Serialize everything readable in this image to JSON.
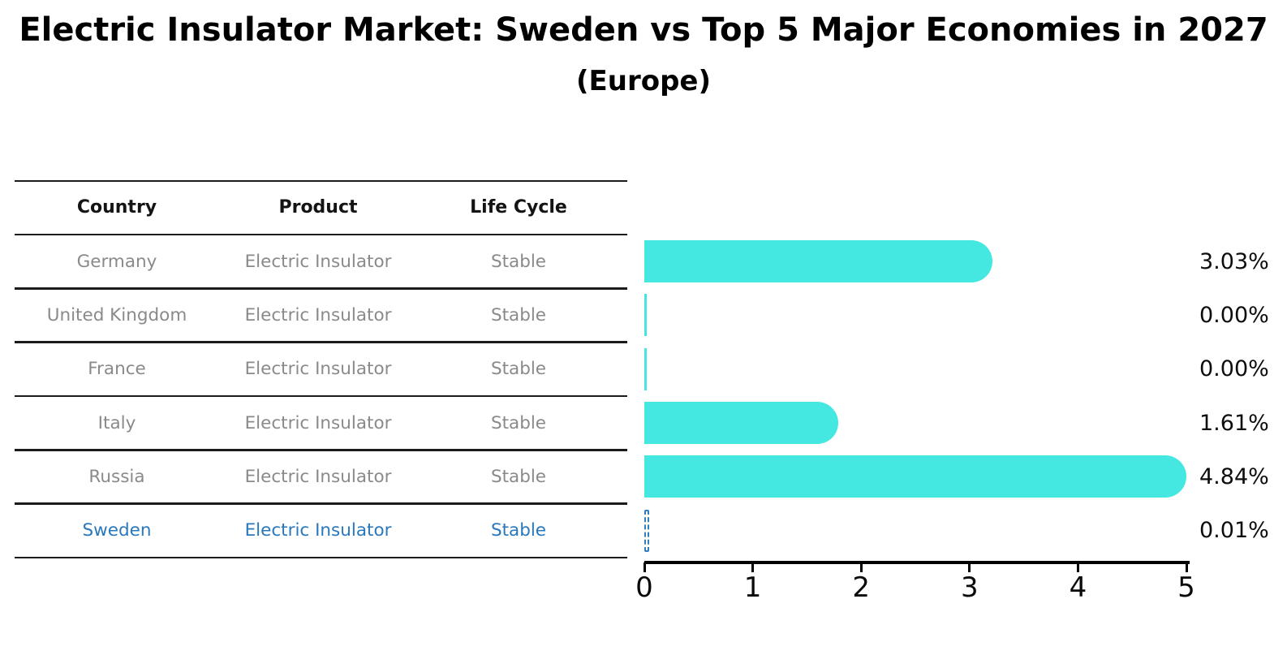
{
  "header": {
    "title": "Electric Insulator Market: Sweden vs Top 5 Major Economies in 2027",
    "subtitle": "(Europe)"
  },
  "table": {
    "columns": [
      "Country",
      "Product",
      "Life Cycle"
    ],
    "rows": [
      {
        "country": "Germany",
        "product": "Electric Insulator",
        "life_cycle": "Stable",
        "highlight": false
      },
      {
        "country": "United Kingdom",
        "product": "Electric Insulator",
        "life_cycle": "Stable",
        "highlight": false
      },
      {
        "country": "France",
        "product": "Electric Insulator",
        "life_cycle": "Stable",
        "highlight": false
      },
      {
        "country": "Italy",
        "product": "Electric Insulator",
        "life_cycle": "Stable",
        "highlight": false
      },
      {
        "country": "Russia",
        "product": "Electric Insulator",
        "life_cycle": "Stable",
        "highlight": false
      },
      {
        "country": "Sweden",
        "product": "Electric Insulator",
        "life_cycle": "Stable",
        "highlight": true
      }
    ]
  },
  "chart_data": {
    "type": "bar",
    "orientation": "horizontal",
    "title": "Electric Insulator Market: Sweden vs Top 5 Major Economies in 2027",
    "subtitle": "(Europe)",
    "categories": [
      "Germany",
      "United Kingdom",
      "France",
      "Italy",
      "Russia",
      "Sweden"
    ],
    "values": [
      3.03,
      0.0,
      0.0,
      1.61,
      4.84,
      0.01
    ],
    "value_labels": [
      "3.03%",
      "0.00%",
      "0.00%",
      "1.61%",
      "4.84%",
      "0.01%"
    ],
    "xlabel": "",
    "ylabel": "",
    "xlim": [
      0,
      5
    ],
    "x_ticks": [
      0,
      1,
      2,
      3,
      4,
      5
    ],
    "grid": false,
    "legend": false,
    "bar_color": "#45e7e1",
    "highlight_bar_style": "dashed-blue-outline",
    "highlight_color": "#2f7fc1"
  }
}
